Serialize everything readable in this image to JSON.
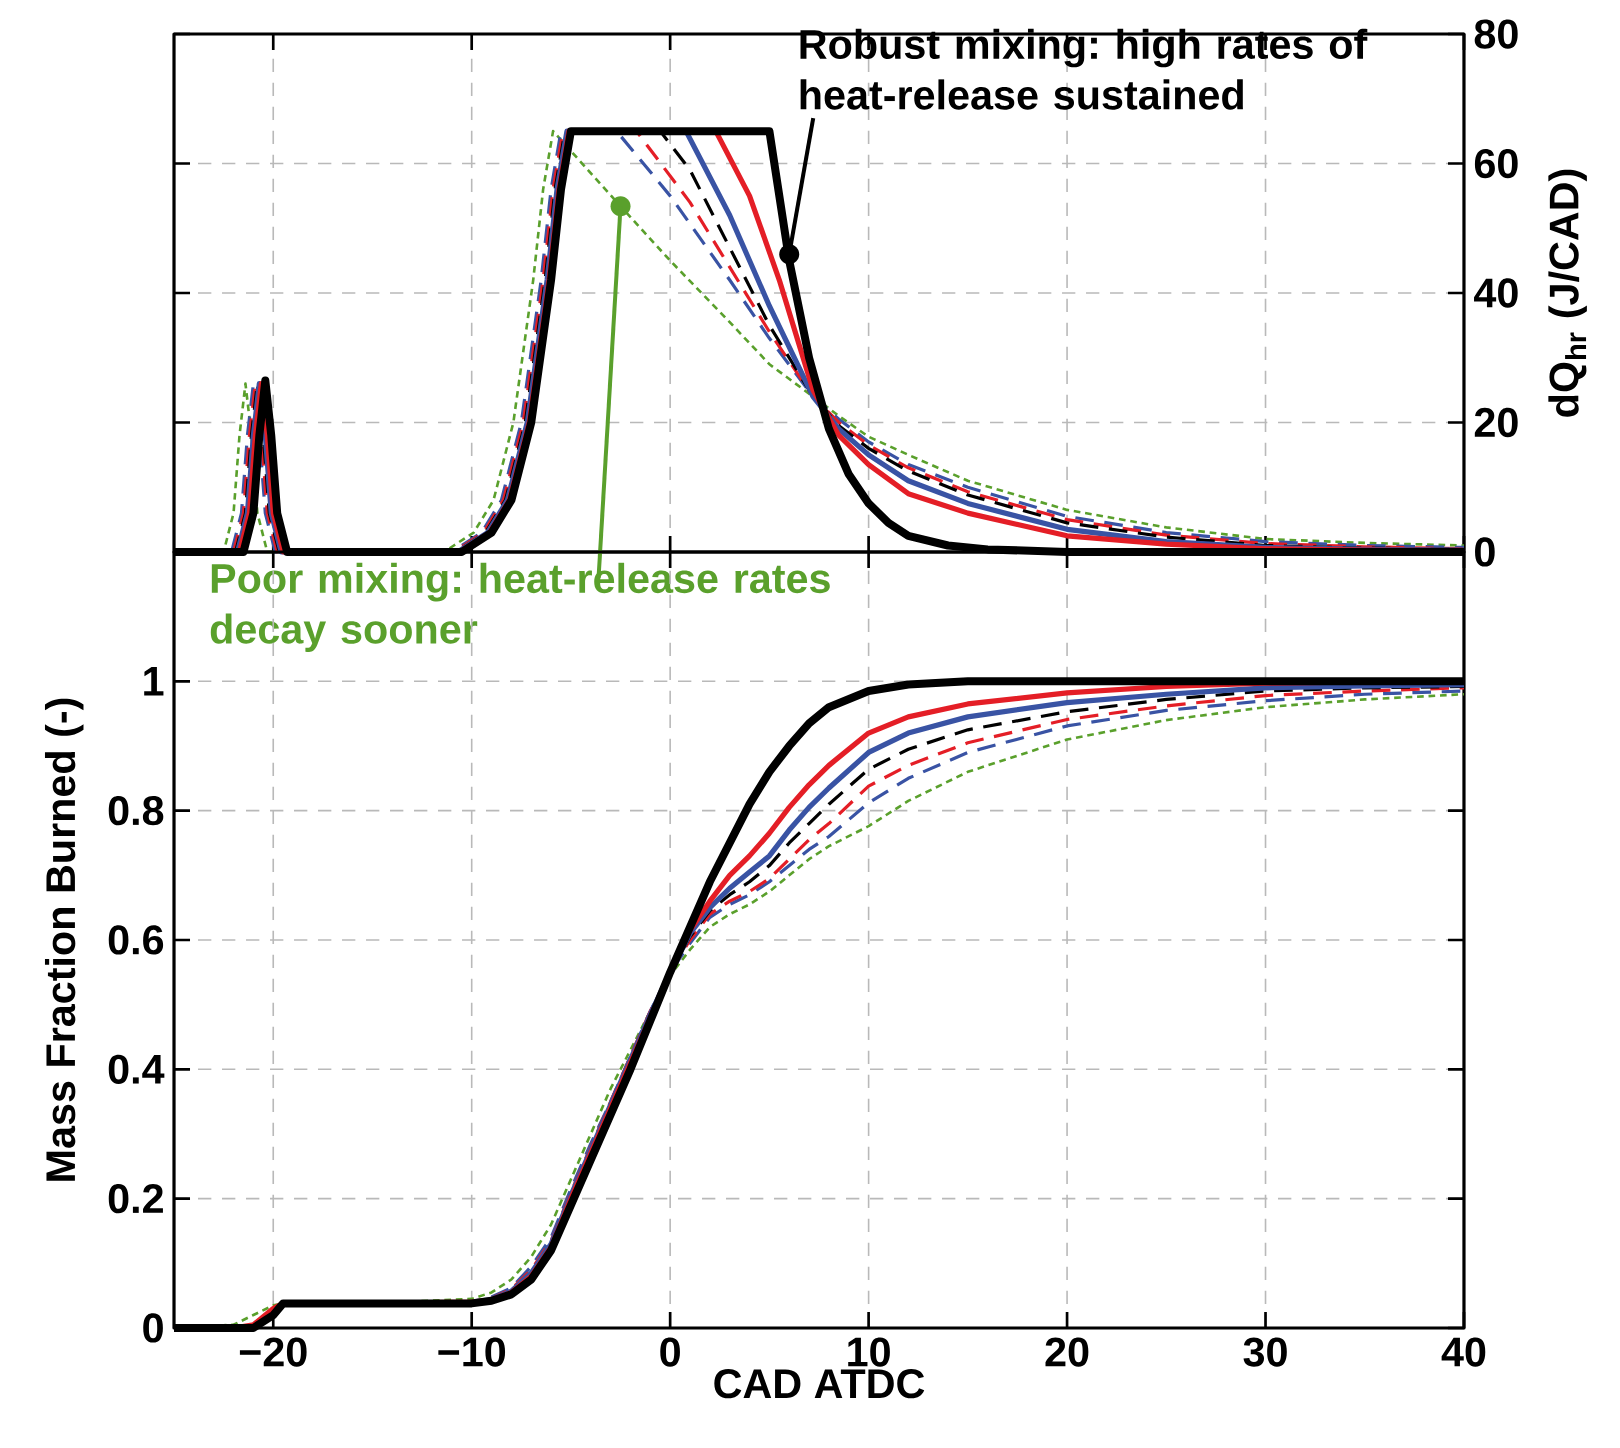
{
  "chart_data": [
    {
      "type": "line",
      "ylabel": "dQ$_{hr}$ (J/CAD)",
      "xlim": [
        -25,
        40
      ],
      "xticks": [
        -20,
        -10,
        0,
        10,
        20,
        30,
        40
      ],
      "ylim": [
        0,
        80
      ],
      "yticks": [
        0,
        20,
        40,
        60,
        80
      ],
      "grid": true,
      "tick_labels": "y",
      "annotations": [
        {
          "text": "Robust mixing: high rates of heat-release sustained",
          "x": 6,
          "y": 46
        },
        {
          "text": "Poor mixing: heat-release rates decay sooner",
          "x": -2.5,
          "y": 53.4
        }
      ],
      "series": [
        {
          "color": "#5aa02c",
          "line_style": "dotted",
          "x": [
            -25,
            -22.5,
            -22,
            -21.7,
            -21.4,
            -21.1,
            -20.8,
            -20.3,
            -11.4,
            -10.9,
            -9.9,
            -8.9,
            -7.9,
            -6.9,
            -6.4,
            -5.9,
            -2.5,
            0,
            3,
            5,
            7.2,
            8.5,
            10,
            12,
            15,
            20,
            25,
            30,
            35,
            40
          ],
          "values": [
            0,
            0,
            6,
            18,
            26,
            18,
            6,
            0,
            0,
            1,
            3,
            8,
            20,
            42,
            56,
            65,
            53.4,
            45,
            35.5,
            29,
            24,
            21,
            17.8,
            15,
            11,
            6.5,
            3.8,
            2,
            1.4,
            1
          ]
        },
        {
          "color": "#3953a4",
          "line_style": "dashed",
          "x": [
            -25,
            -22.1,
            -21.6,
            -21.3,
            -21,
            -20.7,
            -20.4,
            -19.9,
            -11,
            -10.5,
            -9.5,
            -8.5,
            -7.5,
            -6.5,
            -6,
            -5.5,
            -2.7,
            0,
            3,
            5,
            7.2,
            8.5,
            10,
            12,
            15,
            20,
            25,
            30,
            35,
            40
          ],
          "values": [
            0,
            0,
            6,
            18,
            26,
            18,
            6,
            0,
            0,
            1,
            3,
            8,
            20,
            42,
            56,
            65,
            65,
            55,
            42,
            33,
            24,
            20.5,
            17,
            13.5,
            10,
            5.5,
            3,
            1.6,
            1,
            0.7
          ]
        },
        {
          "color": "#e41e26",
          "line_style": "dashed",
          "x": [
            -25,
            -22,
            -21.5,
            -21.2,
            -20.9,
            -20.6,
            -20.3,
            -19.8,
            -10.9,
            -10.4,
            -9.4,
            -8.4,
            -7.4,
            -6.4,
            -5.9,
            -5.4,
            -1.7,
            1,
            3,
            5,
            7.2,
            8.5,
            10,
            12,
            15,
            20,
            25,
            30,
            35,
            40
          ],
          "values": [
            0,
            0,
            6,
            18,
            26,
            18,
            6,
            0,
            0,
            1,
            3,
            8,
            20,
            42,
            56,
            65,
            65,
            54,
            44,
            34,
            24,
            20,
            16.5,
            13,
            9.3,
            5,
            2.6,
            1.3,
            0.8,
            0.5
          ]
        },
        {
          "color": "#000000",
          "line_style": "dashed",
          "x": [
            -25,
            -21.9,
            -21.4,
            -21.1,
            -20.8,
            -20.5,
            -20.2,
            -19.7,
            -10.8,
            -10.3,
            -9.3,
            -8.3,
            -7.3,
            -6.3,
            -5.8,
            -5.3,
            -0.5,
            1,
            3,
            5,
            7.2,
            8.5,
            10,
            12,
            15,
            20,
            25,
            30,
            35,
            40
          ],
          "values": [
            0,
            0,
            6,
            18,
            26,
            18,
            6,
            0,
            0,
            1,
            3,
            8,
            20,
            42,
            56,
            65,
            65,
            59,
            47,
            35,
            24,
            19.5,
            16,
            12.5,
            8.8,
            4.5,
            2.3,
            1,
            0.6,
            0.4
          ]
        },
        {
          "color": "#3953a4",
          "line_style": "solid",
          "x": [
            -25,
            -21.8,
            -21.3,
            -21,
            -20.7,
            -20.4,
            -20.1,
            -19.6,
            -10.7,
            -10.2,
            -9.2,
            -8.2,
            -7.2,
            -6.2,
            -5.7,
            -5.2,
            0.8,
            3,
            5,
            7.2,
            8.5,
            10,
            12,
            15,
            20,
            25,
            30,
            35,
            40
          ],
          "values": [
            0,
            0,
            6,
            18,
            26,
            18,
            6,
            0,
            0,
            1,
            3,
            8,
            20,
            42,
            56,
            65,
            65,
            52,
            38,
            24,
            19,
            15,
            11,
            7.5,
            3.5,
            1.6,
            0.7,
            0.4,
            0.3
          ]
        },
        {
          "color": "#e41e26",
          "line_style": "solid",
          "x": [
            -25,
            -21.7,
            -21.2,
            -20.9,
            -20.6,
            -20.3,
            -20,
            -19.5,
            -10.6,
            -10.1,
            -9.1,
            -8.1,
            -7.1,
            -6.1,
            -5.6,
            -5.1,
            2.3,
            4,
            5.5,
            7.2,
            8.5,
            10,
            12,
            15,
            20,
            25,
            30,
            35,
            40
          ],
          "values": [
            0,
            0,
            6,
            18,
            26,
            18,
            6,
            0,
            0,
            1,
            3,
            8,
            20,
            42,
            56,
            65,
            65,
            55,
            42,
            25,
            18,
            13.5,
            9,
            6,
            2.5,
            1.2,
            0.5,
            0.3,
            0.2
          ]
        },
        {
          "color": "#000000",
          "line_style": "solid",
          "x": [
            -25,
            -21.5,
            -21,
            -20.7,
            -20.4,
            -20.1,
            -19.8,
            -19.3,
            -10.5,
            -10,
            -9,
            -8,
            -7,
            -6,
            -5.5,
            -5,
            5,
            6,
            7,
            8,
            9,
            10,
            11,
            12,
            14,
            16,
            20,
            30,
            40
          ],
          "values": [
            0,
            0,
            6,
            18,
            26.5,
            18,
            6,
            0,
            0,
            1,
            3,
            8,
            20,
            42,
            56,
            65,
            65,
            45,
            30,
            19,
            12,
            7.5,
            4.5,
            2.5,
            1,
            0.4,
            0,
            0,
            0
          ]
        }
      ]
    },
    {
      "type": "line",
      "xlabel": "CAD ATDC",
      "ylabel": "Mass Fraction Burned (-)",
      "xlim": [
        -25,
        40
      ],
      "xticks": [
        {
          "value": -20,
          "label": "−20"
        },
        {
          "value": -10,
          "label": "−10"
        },
        0,
        10,
        20,
        30,
        40
      ],
      "ylim": [
        0,
        1.2
      ],
      "yticks": [
        0,
        0.2,
        0.4,
        0.6,
        0.8,
        1
      ],
      "grid": true,
      "x": [
        -25,
        -22,
        -21,
        -20,
        -19.5,
        -15,
        -10,
        -9,
        -8,
        -7,
        -6,
        -5,
        -4,
        -3,
        -2,
        -1,
        0,
        1,
        2,
        3,
        4,
        5,
        6,
        7,
        8,
        10,
        12,
        15,
        20,
        25,
        30,
        35,
        40
      ],
      "series": [
        {
          "color": "#5aa02c",
          "line_style": "dotted",
          "values": [
            0,
            0.005,
            0.02,
            0.035,
            0.038,
            0.038,
            0.045,
            0.055,
            0.075,
            0.11,
            0.16,
            0.23,
            0.3,
            0.37,
            0.43,
            0.49,
            0.545,
            0.585,
            0.62,
            0.64,
            0.655,
            0.675,
            0.7,
            0.725,
            0.745,
            0.776,
            0.815,
            0.86,
            0.91,
            0.94,
            0.96,
            0.972,
            0.98
          ]
        },
        {
          "color": "#3953a4",
          "line_style": "dashed",
          "values": [
            null,
            null,
            null,
            null,
            null,
            null,
            null,
            0.048,
            0.062,
            0.095,
            0.14,
            0.215,
            0.285,
            0.35,
            0.42,
            0.49,
            0.55,
            0.595,
            0.635,
            0.655,
            0.67,
            0.69,
            0.715,
            0.74,
            0.76,
            0.812,
            0.85,
            0.89,
            0.931,
            0.955,
            0.97,
            0.98,
            0.985
          ]
        },
        {
          "color": "#e41e26",
          "line_style": "dashed",
          "values": [
            0,
            0,
            0.005,
            0.03,
            0.038,
            0.038,
            0.04,
            0.046,
            0.06,
            0.09,
            0.135,
            0.21,
            0.28,
            0.35,
            0.42,
            0.49,
            0.55,
            0.6,
            0.64,
            0.66,
            0.675,
            0.695,
            0.725,
            0.755,
            0.78,
            0.838,
            0.87,
            0.905,
            0.941,
            0.962,
            0.978,
            0.985,
            0.99
          ]
        },
        {
          "color": "#000000",
          "line_style": "dashed",
          "values": [
            0,
            0,
            0.005,
            0.03,
            0.038,
            0.038,
            0.04,
            0.044,
            0.057,
            0.085,
            0.13,
            0.205,
            0.275,
            0.345,
            0.415,
            0.485,
            0.55,
            0.605,
            0.645,
            0.67,
            0.69,
            0.715,
            0.75,
            0.78,
            0.81,
            0.864,
            0.895,
            0.925,
            0.953,
            0.972,
            0.985,
            0.99,
            0.992
          ]
        },
        {
          "color": "#3953a4",
          "line_style": "solid",
          "values": [
            null,
            null,
            null,
            null,
            null,
            null,
            0.04,
            0.044,
            0.057,
            0.085,
            0.13,
            0.205,
            0.275,
            0.345,
            0.415,
            0.485,
            0.55,
            0.61,
            0.65,
            0.68,
            0.705,
            0.73,
            0.77,
            0.805,
            0.835,
            0.89,
            0.92,
            0.945,
            0.967,
            0.98,
            0.99,
            0.993,
            0.995
          ]
        },
        {
          "color": "#e41e26",
          "line_style": "solid",
          "values": [
            0,
            0,
            0.005,
            0.03,
            0.038,
            0.038,
            0.04,
            0.043,
            0.055,
            0.08,
            0.125,
            0.2,
            0.27,
            0.34,
            0.41,
            0.48,
            0.55,
            0.615,
            0.66,
            0.7,
            0.73,
            0.765,
            0.805,
            0.84,
            0.87,
            0.92,
            0.945,
            0.965,
            0.982,
            0.992,
            0.997,
            0.999,
            1
          ]
        },
        {
          "color": "#000000",
          "line_style": "solid",
          "values": [
            0,
            0,
            0,
            0.02,
            0.038,
            0.038,
            0.038,
            0.042,
            0.052,
            0.075,
            0.12,
            0.19,
            0.26,
            0.33,
            0.4,
            0.475,
            0.55,
            0.62,
            0.69,
            0.75,
            0.81,
            0.86,
            0.9,
            0.935,
            0.96,
            0.985,
            0.995,
            1,
            1,
            1,
            1,
            1,
            1
          ]
        }
      ]
    }
  ]
}
